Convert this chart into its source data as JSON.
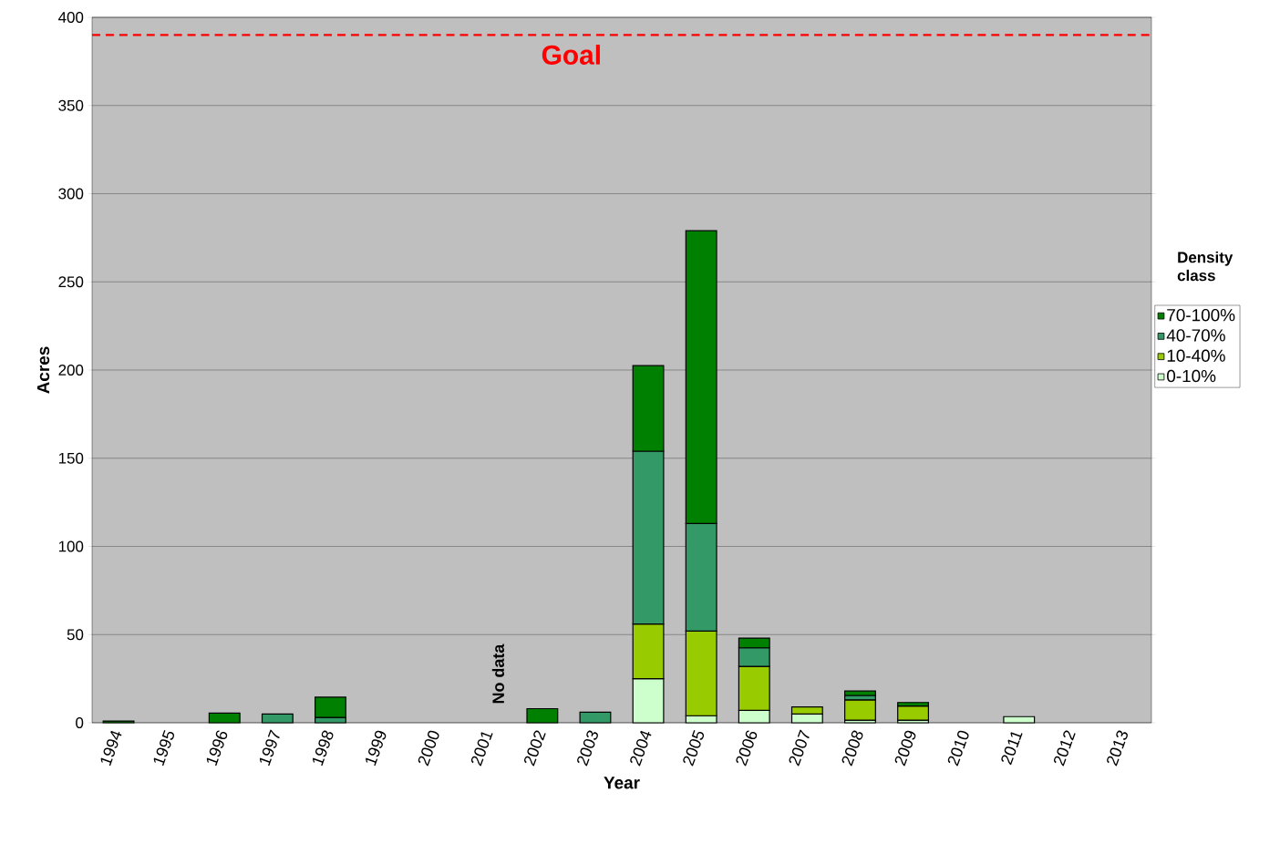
{
  "chart_data": {
    "type": "bar",
    "stacked": true,
    "xlabel": "Year",
    "ylabel": "Acres",
    "legend_title": "Density class",
    "categories": [
      "1994",
      "1995",
      "1996",
      "1997",
      "1998",
      "1999",
      "2000",
      "2001",
      "2002",
      "2003",
      "2004",
      "2005",
      "2006",
      "2007",
      "2008",
      "2009",
      "2010",
      "2011",
      "2012",
      "2013"
    ],
    "series": [
      {
        "name": "0-10%",
        "color": "#ccffcc",
        "values": [
          null,
          null,
          null,
          null,
          null,
          null,
          null,
          null,
          null,
          null,
          25,
          4,
          7,
          5,
          1.5,
          1.5,
          null,
          3.5,
          null,
          null
        ]
      },
      {
        "name": "10-40%",
        "color": "#99cc00",
        "values": [
          null,
          null,
          null,
          null,
          null,
          null,
          null,
          null,
          null,
          null,
          31,
          48,
          25,
          4,
          11.5,
          8,
          null,
          null,
          null,
          null
        ]
      },
      {
        "name": "40-70%",
        "color": "#339966",
        "values": [
          null,
          null,
          null,
          5,
          3,
          null,
          null,
          null,
          null,
          6,
          98,
          61,
          10.5,
          null,
          2.5,
          null,
          null,
          null,
          null,
          null
        ]
      },
      {
        "name": "70-100%",
        "color": "#008000",
        "values": [
          1,
          null,
          5.5,
          null,
          11.5,
          null,
          null,
          null,
          8,
          null,
          48.5,
          166,
          5.5,
          null,
          2.5,
          2,
          null,
          null,
          null,
          null
        ]
      }
    ],
    "ylim": [
      0,
      400
    ],
    "yticks": [
      0,
      50,
      100,
      150,
      200,
      250,
      300,
      350,
      400
    ],
    "grid": "y",
    "legend": "right",
    "ref_lines": [
      {
        "axis": "y",
        "value": 390,
        "label": "Goal",
        "color": "#ff0000",
        "line_style": "dashed"
      }
    ],
    "annotations": [
      "No data"
    ]
  }
}
